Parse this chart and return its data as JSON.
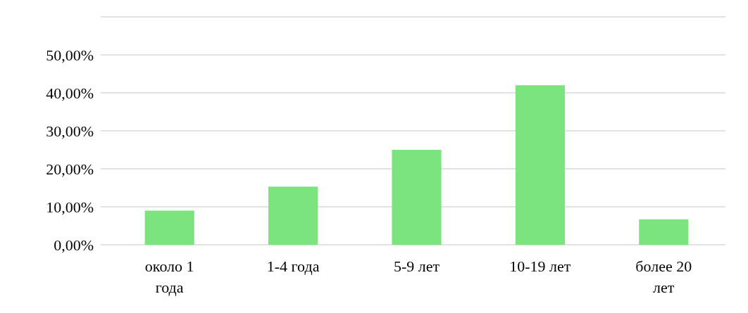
{
  "chart_data": {
    "type": "bar",
    "categories": [
      "около 1 года",
      "1-4 года",
      "5-9 лет",
      "10-19 лет",
      "более 20 лет"
    ],
    "values": [
      9.0,
      15.3,
      25.0,
      42.0,
      6.7
    ],
    "color": "#7be47f",
    "ylim": [
      0,
      60
    ],
    "yticks": [
      {
        "value": 0,
        "label": "0,00%"
      },
      {
        "value": 10,
        "label": "10,00%"
      },
      {
        "value": 20,
        "label": "20,00%"
      },
      {
        "value": 30,
        "label": "30,00%"
      },
      {
        "value": 40,
        "label": "40,00%"
      },
      {
        "value": 50,
        "label": "50,00%"
      },
      {
        "value": 60,
        "label": null
      }
    ],
    "grid": "y"
  }
}
